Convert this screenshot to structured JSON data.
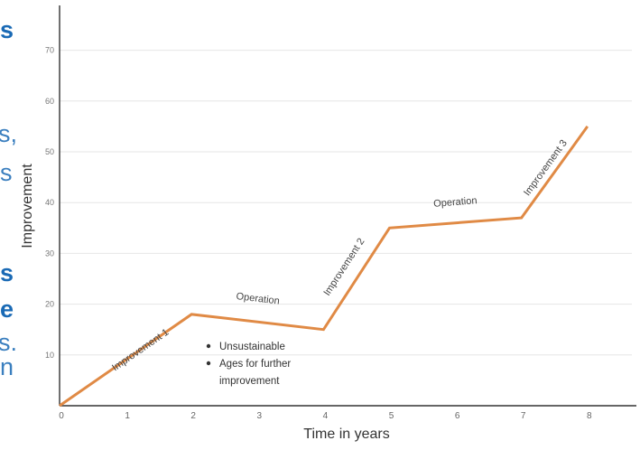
{
  "left_fragments": [
    {
      "text": "s",
      "style": "bold"
    },
    {
      "text": "s,",
      "style": "thin"
    },
    {
      "text": "s",
      "style": "thin"
    },
    {
      "text": "s",
      "style": "bold"
    },
    {
      "text": "e",
      "style": "bold"
    },
    {
      "text": "s.",
      "style": "thin"
    },
    {
      "text": "n",
      "style": "thin"
    }
  ],
  "chart_data": {
    "type": "line",
    "title": "",
    "xlabel": "Time in years",
    "ylabel": "Improvement",
    "xlim": [
      0,
      8.7
    ],
    "ylim": [
      0,
      80
    ],
    "x_ticks": [
      "0",
      "1",
      "2",
      "3",
      "4",
      "5",
      "6",
      "7",
      "8"
    ],
    "y_ticks": [
      "10",
      "20",
      "30",
      "40",
      "50",
      "60",
      "70"
    ],
    "grid": true,
    "line_color": "#e08a45",
    "series": [
      {
        "x": [
          0,
          2,
          4,
          5,
          7,
          8
        ],
        "y": [
          0,
          18,
          15,
          35,
          37,
          55
        ]
      }
    ],
    "segment_labels": [
      {
        "text": "Improvement 1",
        "x": 1.25,
        "y": 10.5
      },
      {
        "text": "Operation",
        "x": 3.0,
        "y": 20.5
      },
      {
        "text": "Improvement 2",
        "x": 4.35,
        "y": 27
      },
      {
        "text": "Operation",
        "x": 6.0,
        "y": 39.5
      },
      {
        "text": "Improvement 3",
        "x": 7.4,
        "y": 46.5
      }
    ],
    "annotations": [
      {
        "text": "Unsustainable"
      },
      {
        "text": "Ages for further"
      },
      {
        "text": "improvement"
      }
    ]
  }
}
